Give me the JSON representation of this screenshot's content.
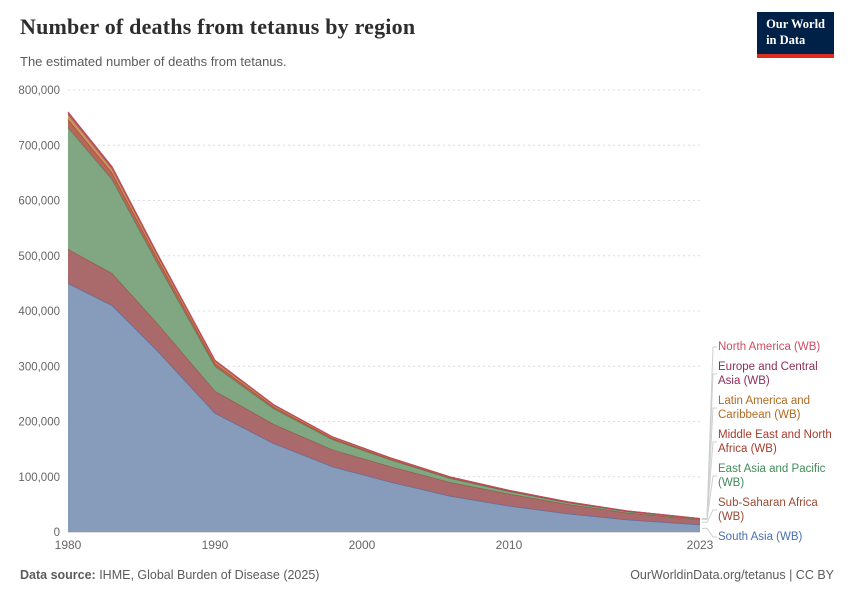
{
  "header": {
    "title": "Number of deaths from tetanus by region",
    "subtitle": "The estimated number of deaths from tetanus.",
    "logo_line1": "Our World",
    "logo_line2": "in Data"
  },
  "footer": {
    "source_label": "Data source:",
    "source_text": " IHME, Global Burden of Disease (2025)",
    "right_text": "OurWorldinData.org/tetanus | CC BY"
  },
  "chart_data": {
    "type": "area",
    "stacked": true,
    "title": "Number of deaths from tetanus by region",
    "xlabel": "",
    "ylabel": "",
    "ylim": [
      0,
      800000
    ],
    "yticks": [
      0,
      100000,
      200000,
      300000,
      400000,
      500000,
      600000,
      700000,
      800000
    ],
    "xticks": [
      1980,
      1990,
      2000,
      2010,
      2023
    ],
    "grid": "horizontal-dashed",
    "legend_position": "right",
    "x": [
      1980,
      1983,
      1986,
      1990,
      1994,
      1998,
      2002,
      2006,
      2010,
      2014,
      2018,
      2023
    ],
    "series": [
      {
        "name": "South Asia (WB)",
        "color": "#4a6fb1",
        "fill": "#7d94b5",
        "values": [
          450000,
          410000,
          330000,
          215000,
          160000,
          118000,
          90000,
          65000,
          47000,
          33000,
          22000,
          13000
        ]
      },
      {
        "name": "Sub-Saharan Africa (WB)",
        "color": "#9a4a34",
        "fill": "#a35d5f",
        "values": [
          62000,
          58000,
          50000,
          40000,
          35000,
          31000,
          28000,
          25000,
          22000,
          17000,
          13000,
          9000
        ]
      },
      {
        "name": "East Asia and Pacific (WB)",
        "color": "#418a5a",
        "fill": "#76a077",
        "values": [
          220000,
          170000,
          110000,
          45000,
          28000,
          18000,
          12000,
          7000,
          4500,
          3200,
          2300,
          1600
        ]
      },
      {
        "name": "Middle East and North Africa (WB)",
        "color": "#a73b2e",
        "fill": "#b05a4b",
        "values": [
          15000,
          12000,
          9000,
          5000,
          3500,
          2500,
          1800,
          1300,
          900,
          700,
          500,
          400
        ]
      },
      {
        "name": "Latin America and Caribbean (WB)",
        "color": "#b16a21",
        "fill": "#c88a55",
        "values": [
          9000,
          7500,
          6000,
          4000,
          2800,
          2000,
          1400,
          1000,
          700,
          500,
          350,
          250
        ]
      },
      {
        "name": "Europe and Central Asia (WB)",
        "color": "#8c2d5a",
        "fill": "#a35a77",
        "values": [
          4000,
          3200,
          2400,
          1500,
          1000,
          700,
          500,
          350,
          250,
          180,
          130,
          100
        ]
      },
      {
        "name": "North America (WB)",
        "color": "#cc4c63",
        "fill": "#d87a88",
        "values": [
          600,
          500,
          400,
          250,
          180,
          120,
          90,
          70,
          50,
          40,
          30,
          25
        ]
      }
    ]
  }
}
